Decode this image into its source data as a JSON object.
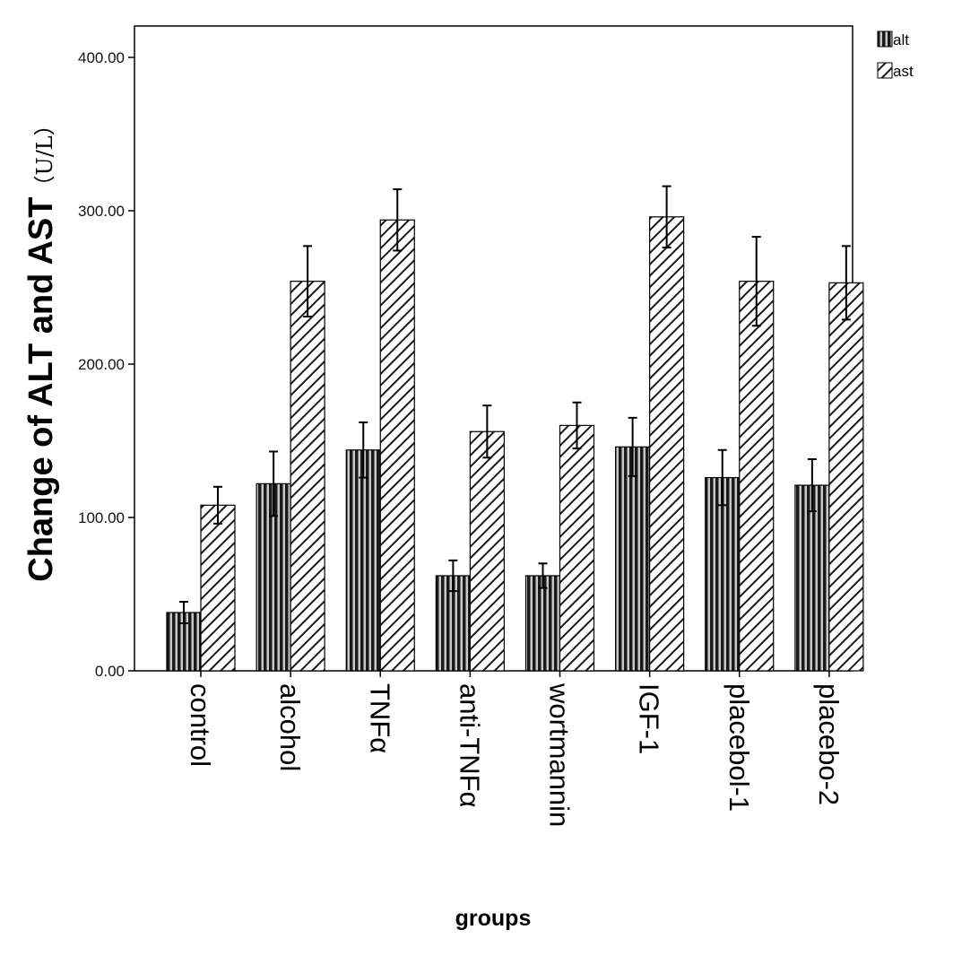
{
  "chart_data": {
    "type": "bar",
    "title": "",
    "xlabel": "groups",
    "ylabel": "Change of ALT and AST",
    "ylabel_unit": "（U/L）",
    "categories": [
      "control",
      "alcohol",
      "TNFα",
      "anti-TNFα",
      "wortmannin",
      "IGF-1",
      "placebol-1",
      "placebo-2"
    ],
    "series": [
      {
        "name": "alt",
        "pattern": "vertical-stripes",
        "values": [
          38,
          122,
          144,
          62,
          62,
          146,
          126,
          121
        ],
        "error": [
          7,
          21,
          18,
          10,
          8,
          19,
          18,
          17
        ]
      },
      {
        "name": "ast",
        "pattern": "diagonal-hatch",
        "values": [
          108,
          254,
          294,
          156,
          160,
          296,
          254,
          253
        ],
        "error": [
          12,
          23,
          20,
          17,
          15,
          20,
          29,
          24
        ]
      }
    ],
    "yticks": [
      "0.00",
      "100.00",
      "200.00",
      "300.00",
      "400.00"
    ],
    "ytick_values": [
      0,
      100,
      200,
      300,
      400
    ],
    "ylim": [
      0,
      420
    ],
    "grid": false,
    "legend_position": "top-right",
    "colors": {
      "alt": "#1a1a1a",
      "ast": "#1a1a1a",
      "background": "#ffffff",
      "axis": "#000000"
    }
  }
}
